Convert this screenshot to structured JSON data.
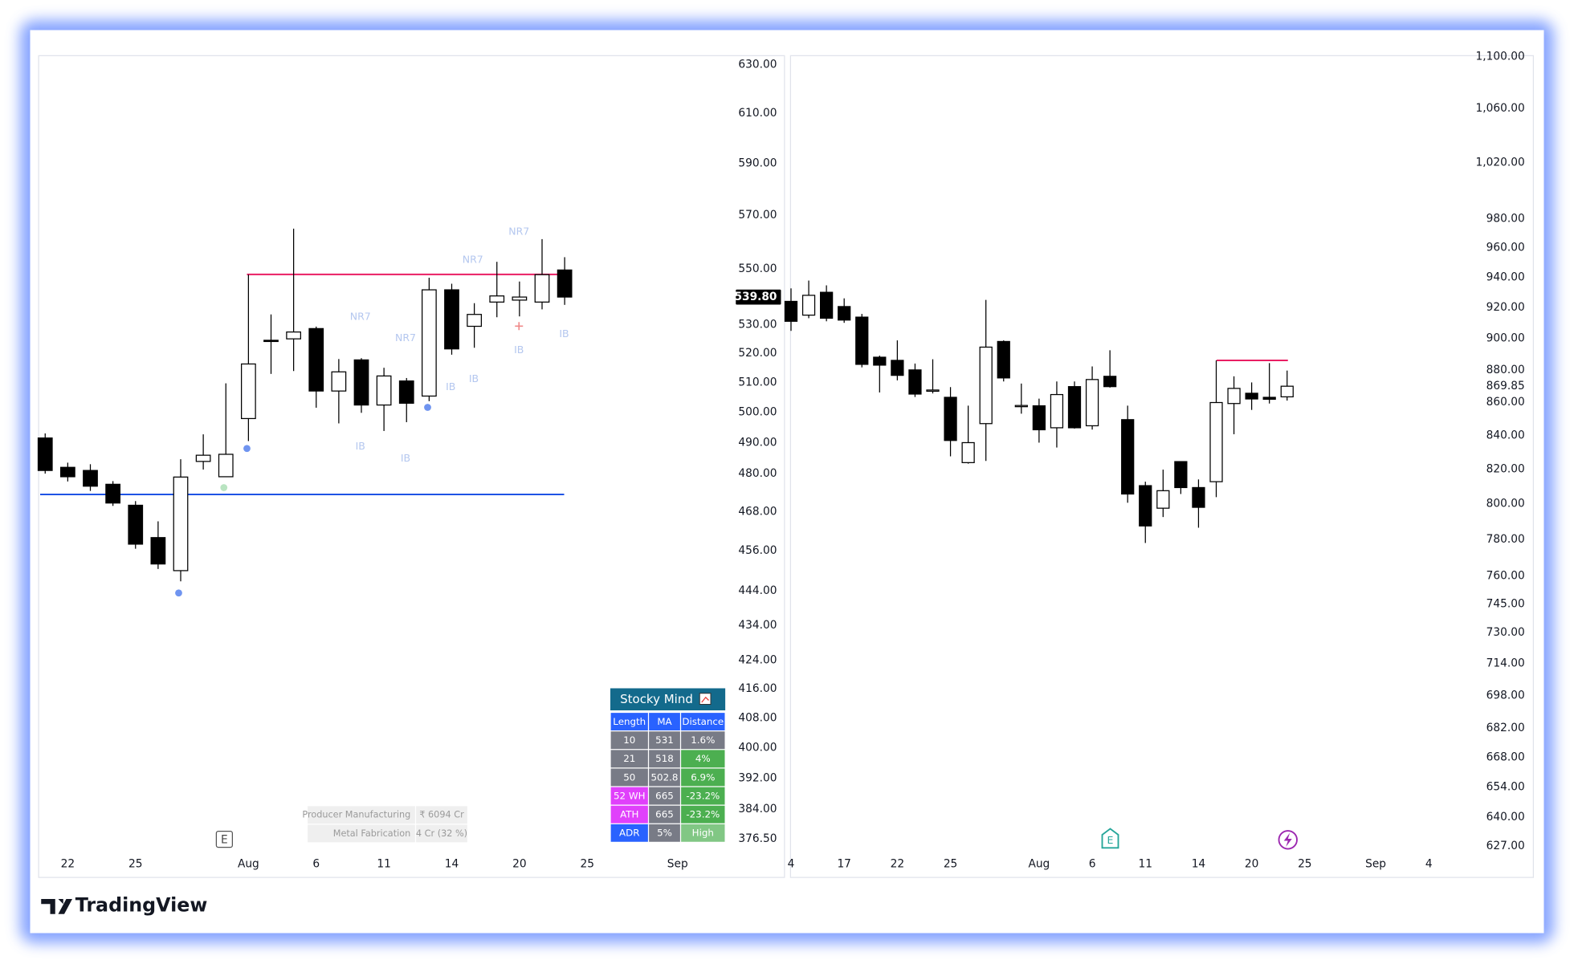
{
  "chart_data": [
    {
      "type": "candlestick",
      "log_scale": true,
      "grid": false,
      "up_color": "#ffffff",
      "down_color": "#000000",
      "border_color": "#000000",
      "categories": [
        null,
        "22",
        null,
        null,
        "25",
        null,
        null,
        null,
        null,
        "Aug",
        null,
        null,
        "6",
        null,
        null,
        "11",
        null,
        null,
        "14",
        null,
        null,
        "20",
        null,
        null,
        "25",
        null,
        null,
        null,
        "Sep",
        null
      ],
      "open": [
        491.5,
        482,
        481,
        476.6,
        470,
        460,
        450,
        483.9,
        479,
        497.9,
        524.5,
        525,
        528.6,
        507.1,
        517.7,
        502.4,
        510.5,
        505.4,
        542.4,
        529.4,
        538,
        538.7,
        538,
        549.6,
        null,
        null,
        null,
        null,
        null,
        null
      ],
      "high": [
        493,
        483.5,
        483,
        477.6,
        471.3,
        465,
        484.6,
        492.7,
        509.7,
        547.9,
        533.6,
        564.9,
        529.3,
        518,
        518.3,
        515,
        511.5,
        546.8,
        544.6,
        537.6,
        552.6,
        545.4,
        561,
        554.3,
        null,
        null,
        null,
        null,
        null,
        null
      ],
      "low": [
        480,
        477.5,
        474.5,
        469.8,
        456.6,
        450.5,
        446.8,
        481.3,
        478.9,
        490.5,
        512.9,
        513.9,
        501.5,
        496.3,
        499.8,
        493.8,
        496.7,
        503.7,
        519.5,
        521.9,
        532.6,
        532.9,
        535.4,
        537,
        null,
        null,
        null,
        null,
        null,
        null
      ],
      "close": [
        481,
        479,
        476,
        470.7,
        458,
        452,
        478.9,
        485.9,
        486.2,
        516.3,
        524.2,
        527.4,
        507.1,
        513.6,
        502.4,
        512.2,
        503,
        542.4,
        521.5,
        533.6,
        540.2,
        539.8,
        547.9,
        539.8,
        null,
        null,
        null,
        null,
        null,
        null
      ],
      "ylim": [
        373,
        634
      ],
      "yticks": [
        {
          "value": 630,
          "label": "630.00"
        },
        {
          "value": 610,
          "label": "610.00"
        },
        {
          "value": 590,
          "label": "590.00"
        },
        {
          "value": 570,
          "label": "570.00"
        },
        {
          "value": 550,
          "label": "550.00"
        },
        {
          "value": 530,
          "label": "530.00"
        },
        {
          "value": 520,
          "label": "520.00"
        },
        {
          "value": 510,
          "label": "510.00"
        },
        {
          "value": 500,
          "label": "500.00"
        },
        {
          "value": 490,
          "label": "490.00"
        },
        {
          "value": 480,
          "label": "480.00"
        },
        {
          "value": 468,
          "label": "468.00"
        },
        {
          "value": 456,
          "label": "456.00"
        },
        {
          "value": 444,
          "label": "444.00"
        },
        {
          "value": 434,
          "label": "434.00"
        },
        {
          "value": 424,
          "label": "424.00"
        },
        {
          "value": 416,
          "label": "416.00"
        },
        {
          "value": 408,
          "label": "408.00"
        },
        {
          "value": 400,
          "label": "400.00"
        },
        {
          "value": 392,
          "label": "392.00"
        },
        {
          "value": 384,
          "label": "384.00"
        },
        {
          "value": 376.5,
          "label": "376.50"
        }
      ],
      "last_price": {
        "value": 539.8,
        "label": "539.80"
      },
      "lines": [
        {
          "value": 548,
          "color": "#e91e63"
        },
        {
          "value": 473.4,
          "color": "#1e53e5"
        }
      ],
      "annotations": [
        "NR7",
        "NR7",
        "NR7",
        "NR7",
        "IB",
        "IB",
        "IB",
        "IB",
        "IB",
        "IB"
      ],
      "events": [
        "E"
      ]
    },
    {
      "type": "candlestick",
      "log_scale": true,
      "grid": false,
      "up_color": "#ffffff",
      "down_color": "#000000",
      "border_color": "#000000",
      "categories": [
        "4",
        null,
        null,
        "17",
        null,
        null,
        "22",
        null,
        null,
        "25",
        null,
        null,
        null,
        null,
        "Aug",
        null,
        null,
        "6",
        null,
        null,
        "11",
        null,
        null,
        "14",
        null,
        null,
        "20",
        null,
        null,
        "25",
        null,
        null,
        null,
        "Sep",
        null,
        null,
        "4",
        null
      ],
      "open": [
        924,
        915,
        930,
        920.6,
        913.7,
        888,
        886,
        880,
        867,
        863,
        823.8,
        847,
        898,
        857.5,
        857.8,
        844.5,
        869.6,
        845.7,
        876,
        849.4,
        810.4,
        797.5,
        824.4,
        809.3,
        812.7,
        859.2,
        865.5,
        863,
        863.3,
        null,
        null,
        null,
        null,
        null,
        null,
        null,
        null,
        null
      ],
      "high": [
        932.6,
        937.8,
        934.6,
        926,
        915.8,
        889,
        898.7,
        884,
        886.7,
        869.3,
        857.9,
        925,
        898.7,
        871.5,
        862.2,
        872.8,
        872.8,
        882.2,
        892.4,
        857.9,
        812.7,
        819.7,
        824.4,
        814,
        886,
        876,
        872.2,
        884.3,
        879.6,
        null,
        null,
        null,
        null,
        null,
        null,
        null,
        null,
        null
      ],
      "low": [
        904.8,
        913,
        911,
        910,
        881.6,
        866,
        873.5,
        863.2,
        865.4,
        827.5,
        823.2,
        824.8,
        872.8,
        853,
        835.6,
        832.7,
        844,
        843.4,
        869,
        800.6,
        778,
        792.5,
        805.6,
        786.5,
        803.8,
        840.6,
        855.3,
        859.2,
        861,
        null,
        null,
        null,
        null,
        null,
        null,
        null,
        null,
        null
      ],
      "close": [
        911,
        928,
        913,
        911.8,
        883.5,
        883,
        876.6,
        865,
        867.5,
        836.9,
        835.6,
        894.4,
        875,
        858,
        843.3,
        864.7,
        844.5,
        874,
        869.6,
        805.6,
        787.5,
        807.5,
        809.3,
        798,
        859.8,
        868.5,
        862,
        861.8,
        869.85,
        null,
        null,
        null,
        null,
        null,
        null,
        null,
        null,
        null
      ],
      "ylim": [
        624,
        1101
      ],
      "yticks": [
        {
          "value": 1100,
          "label": "1,100.00"
        },
        {
          "value": 1060,
          "label": "1,060.00"
        },
        {
          "value": 1020,
          "label": "1,020.00"
        },
        {
          "value": 980,
          "label": "980.00"
        },
        {
          "value": 960,
          "label": "960.00"
        },
        {
          "value": 940,
          "label": "940.00"
        },
        {
          "value": 920,
          "label": "920.00"
        },
        {
          "value": 900,
          "label": "900.00"
        },
        {
          "value": 880,
          "label": "880.00"
        },
        {
          "value": 860,
          "label": "860.00"
        },
        {
          "value": 840,
          "label": "840.00"
        },
        {
          "value": 820,
          "label": "820.00"
        },
        {
          "value": 800,
          "label": "800.00"
        },
        {
          "value": 780,
          "label": "780.00"
        },
        {
          "value": 760,
          "label": "760.00"
        },
        {
          "value": 745,
          "label": "745.00"
        },
        {
          "value": 730,
          "label": "730.00"
        },
        {
          "value": 714,
          "label": "714.00"
        },
        {
          "value": 698,
          "label": "698.00"
        },
        {
          "value": 682,
          "label": "682.00"
        },
        {
          "value": 668,
          "label": "668.00"
        },
        {
          "value": 654,
          "label": "654.00"
        },
        {
          "value": 640,
          "label": "640.00"
        },
        {
          "value": 627,
          "label": "627.00"
        }
      ],
      "last_price": {
        "value": 869.85,
        "label": "869.85"
      },
      "lines": [
        {
          "value": 886,
          "color": "#e91e63"
        }
      ],
      "events": [
        "E"
      ]
    }
  ],
  "table": {
    "title": "Stocky Mind",
    "header": [
      "Length",
      "MA",
      "Distance"
    ],
    "rows": [
      [
        "10",
        "531",
        "1.6%"
      ],
      [
        "21",
        "518",
        "4%"
      ],
      [
        "50",
        "502.8",
        "6.9%"
      ],
      [
        "52 WH",
        "665",
        "-23.2%"
      ],
      [
        "ATH",
        "665",
        "-23.2%"
      ],
      [
        "ADR",
        "5%",
        "High"
      ]
    ]
  },
  "info_box": {
    "rows": [
      [
        "Producer Manufacturing",
        "₹ 6094 Cr"
      ],
      [
        "Metal Fabrication",
        "4 Cr (32 %)"
      ]
    ]
  },
  "brand": "TradingView"
}
